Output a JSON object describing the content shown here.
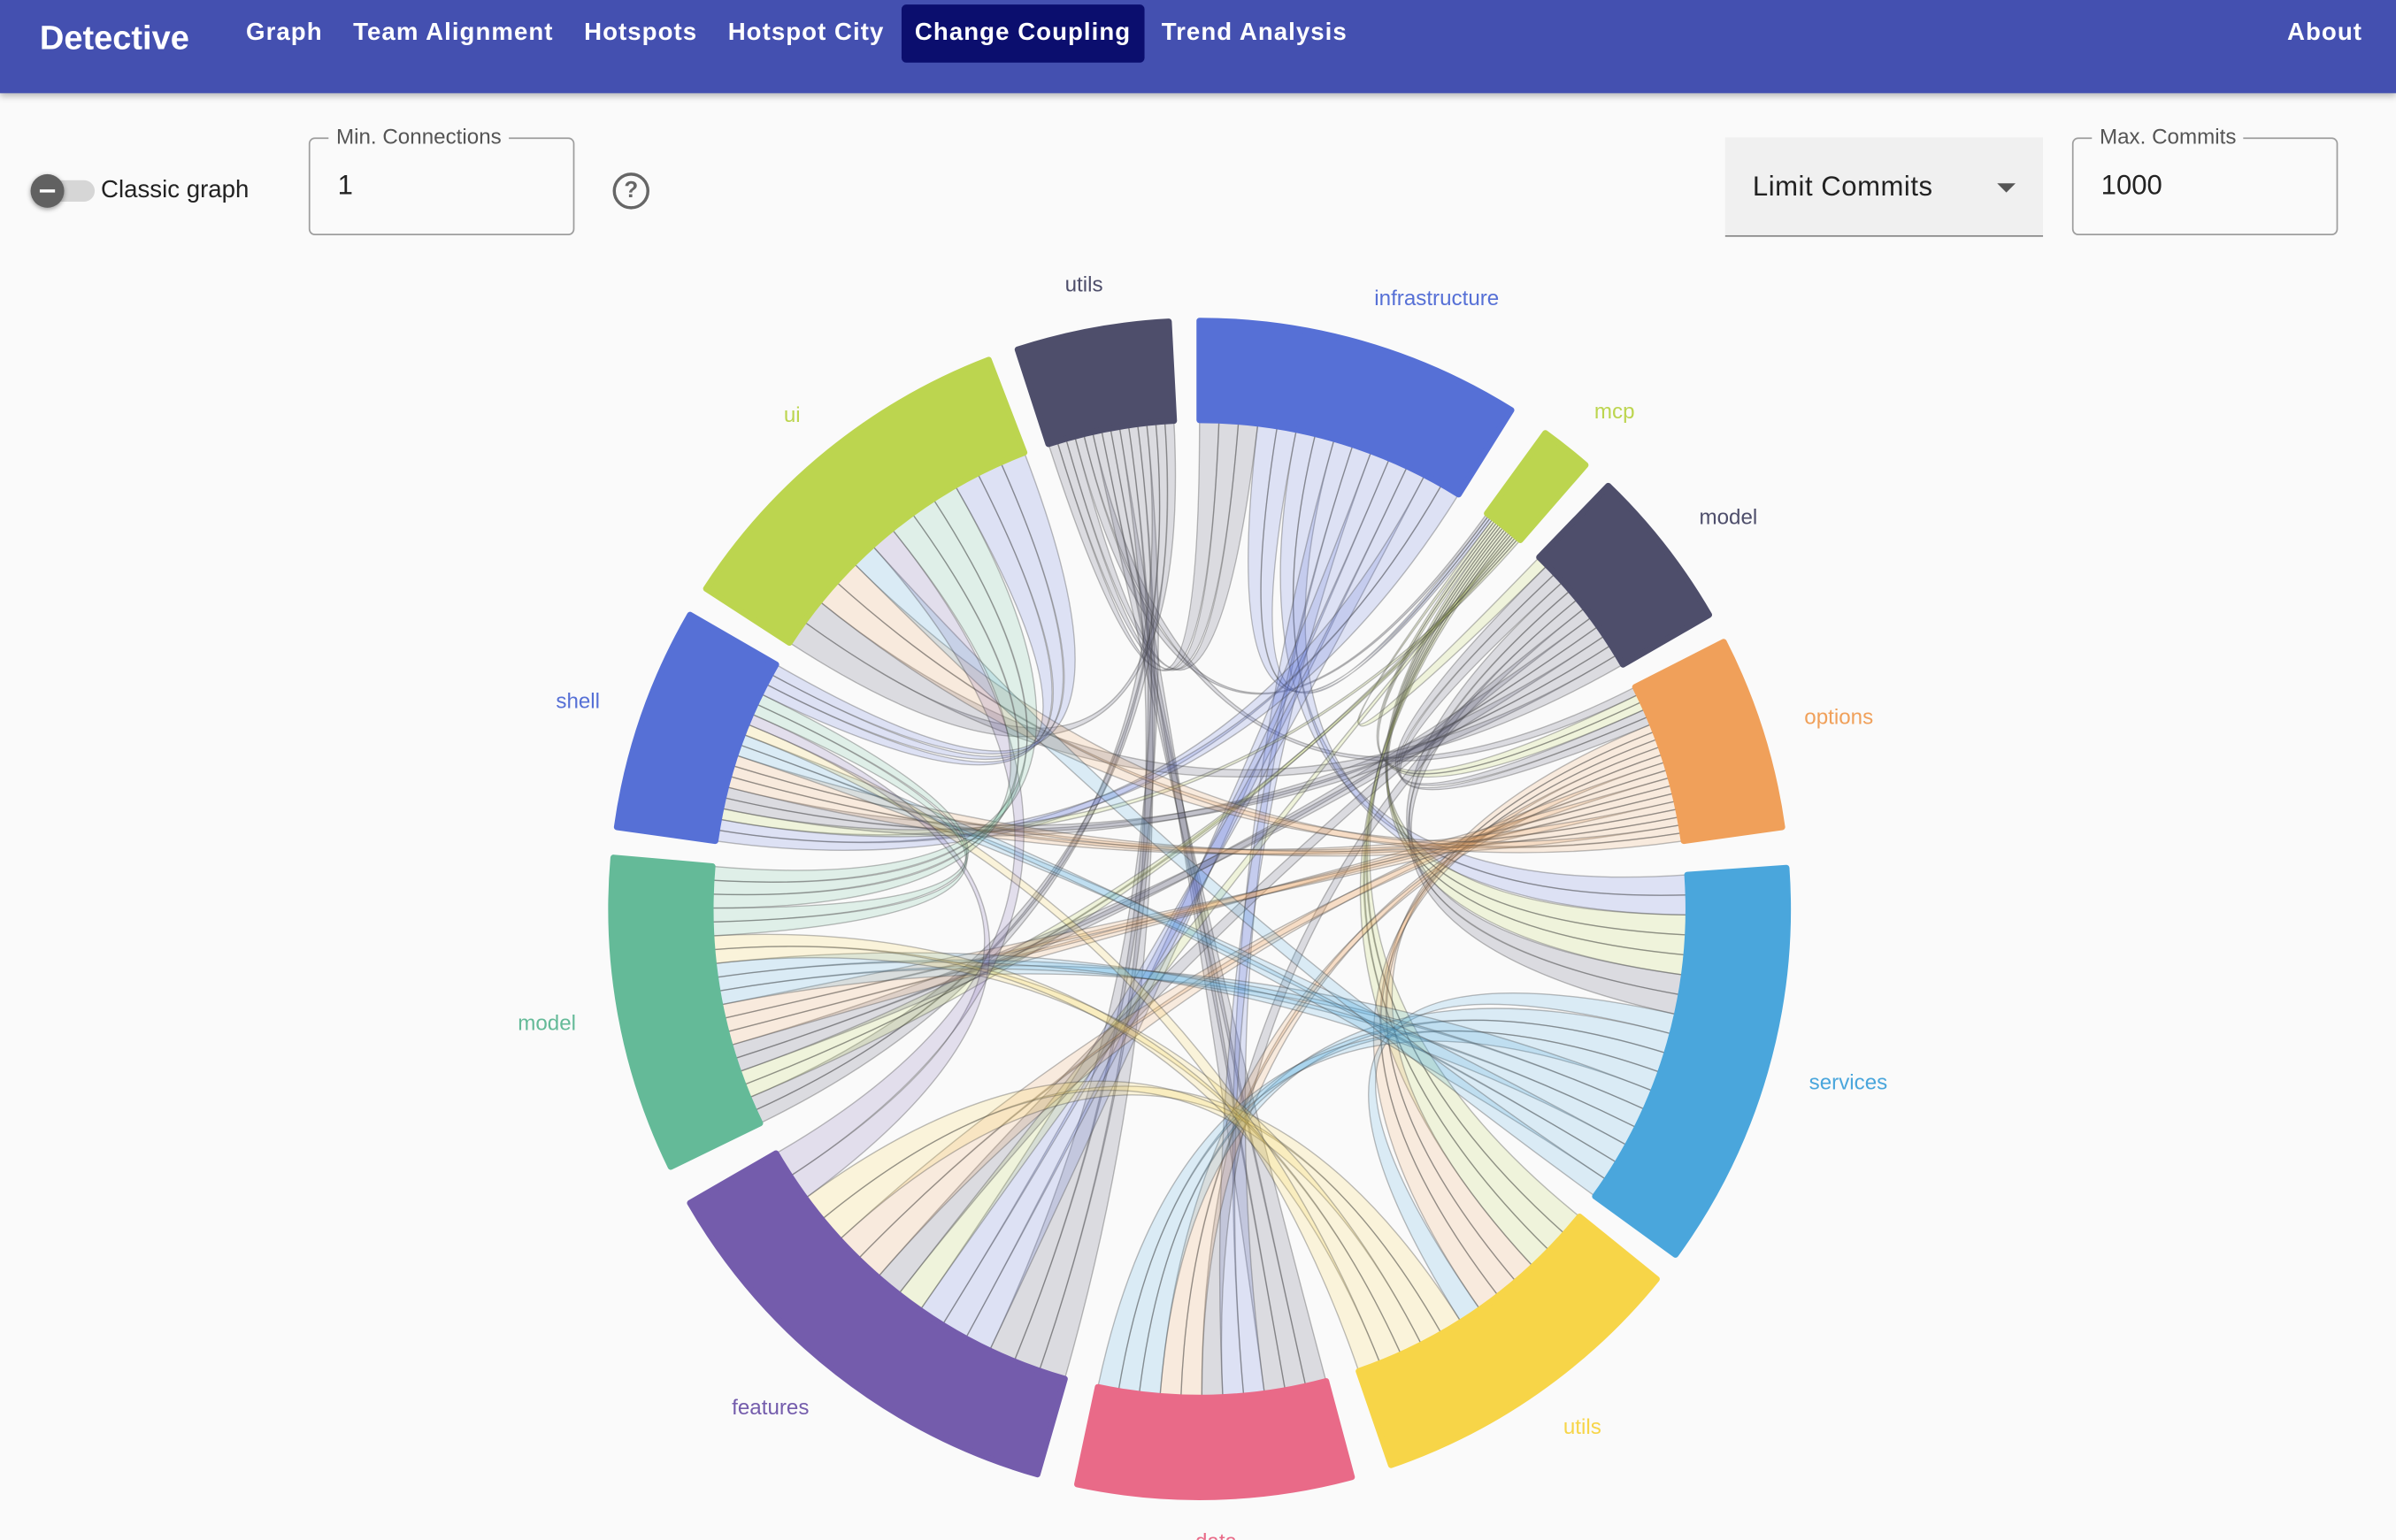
{
  "nav": {
    "brand": "Detective",
    "items": [
      "Graph",
      "Team Alignment",
      "Hotspots",
      "Hotspot City",
      "Change Coupling",
      "Trend Analysis"
    ],
    "active": 4,
    "about": "About"
  },
  "controls": {
    "toggle_label": "Classic graph",
    "min_connections": {
      "label": "Min. Connections",
      "value": "1"
    },
    "limit": "Limit Commits",
    "max_commits": {
      "label": "Max. Commits",
      "value": "1000"
    }
  },
  "diagram": {
    "groups": [
      {
        "label": "utils",
        "color": "#4e4e6b"
      },
      {
        "label": "infrastructure",
        "color": "#5670d6"
      },
      {
        "label": "mcp",
        "color": "#bcd54f"
      },
      {
        "label": "model",
        "color": "#4e4e6b"
      },
      {
        "label": "options",
        "color": "#f0a05a"
      },
      {
        "label": "services",
        "color": "#4aa6dc"
      },
      {
        "label": "utils",
        "color": "#f7d548"
      },
      {
        "label": "data",
        "color": "#e96a88"
      },
      {
        "label": "features",
        "color": "#745cac"
      },
      {
        "label": "model",
        "color": "#64ba98"
      },
      {
        "label": "shell",
        "color": "#5670d6"
      },
      {
        "label": "ui",
        "color": "#bcd54f"
      }
    ]
  }
}
